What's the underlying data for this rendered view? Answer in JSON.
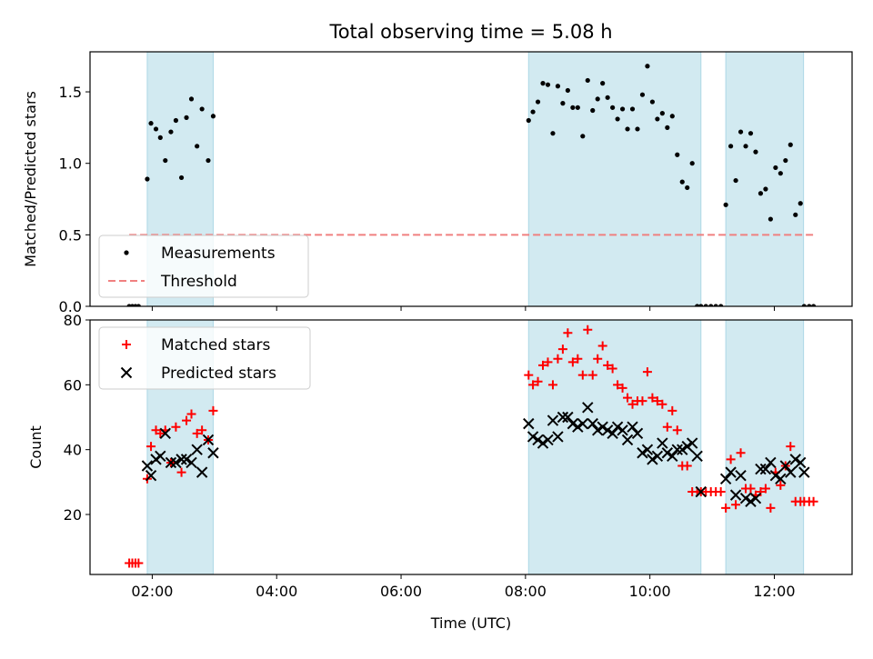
{
  "chart_data": {
    "type": "scatter",
    "title": "Total observing time = 5.08 h",
    "xlabel": "Time (UTC)",
    "x_tick_labels": [
      "02:00",
      "04:00",
      "06:00",
      "08:00",
      "10:00",
      "12:00"
    ],
    "x_tick_hours": [
      2,
      4,
      6,
      8,
      10,
      12
    ],
    "xlim_hours": [
      1.0,
      13.25
    ],
    "observing_windows_hours": [
      [
        1.92,
        2.98
      ],
      [
        8.05,
        10.82
      ],
      [
        11.22,
        12.47
      ]
    ],
    "window_color": "#add8e6",
    "panels": [
      {
        "id": "ratio",
        "ylabel": "Matched/Predicted stars",
        "ylim": [
          0,
          1.78
        ],
        "y_ticks": [
          0.0,
          0.5,
          1.0,
          1.5
        ],
        "y_tick_labels": [
          "0.0",
          "0.5",
          "1.0",
          "1.5"
        ],
        "legend_position": "lower-left",
        "series": [
          {
            "name": "Measurements",
            "marker": "dot",
            "color": "#000000",
            "x": [
              1.63,
              1.68,
              1.73,
              1.78,
              1.92,
              1.98,
              2.06,
              2.13,
              2.21,
              2.3,
              2.38,
              2.47,
              2.55,
              2.63,
              2.72,
              2.8,
              2.9,
              2.98,
              8.05,
              8.12,
              8.2,
              8.28,
              8.36,
              8.44,
              8.52,
              8.6,
              8.68,
              8.76,
              8.84,
              8.92,
              9.0,
              9.08,
              9.16,
              9.24,
              9.32,
              9.4,
              9.48,
              9.56,
              9.64,
              9.72,
              9.8,
              9.88,
              9.96,
              10.04,
              10.12,
              10.2,
              10.28,
              10.36,
              10.44,
              10.52,
              10.6,
              10.68,
              10.76,
              10.82,
              10.9,
              10.98,
              11.06,
              11.14,
              11.22,
              11.3,
              11.38,
              11.46,
              11.54,
              11.62,
              11.7,
              11.78,
              11.86,
              11.94,
              12.02,
              12.1,
              12.18,
              12.26,
              12.34,
              12.42,
              12.48,
              12.56,
              12.63
            ],
            "y": [
              0,
              0,
              0,
              0,
              0.89,
              1.28,
              1.24,
              1.18,
              1.02,
              1.22,
              1.3,
              0.9,
              1.32,
              1.45,
              1.12,
              1.38,
              1.02,
              1.33,
              1.3,
              1.36,
              1.43,
              1.56,
              1.55,
              1.21,
              1.54,
              1.42,
              1.51,
              1.39,
              1.39,
              1.19,
              1.58,
              1.37,
              1.45,
              1.56,
              1.46,
              1.39,
              1.31,
              1.38,
              1.24,
              1.38,
              1.24,
              1.48,
              1.68,
              1.43,
              1.31,
              1.35,
              1.25,
              1.33,
              1.06,
              0.87,
              0.83,
              1.0,
              0,
              0,
              0,
              0,
              0,
              0,
              0.71,
              1.12,
              0.88,
              1.22,
              1.12,
              1.21,
              1.08,
              0.79,
              0.82,
              0.61,
              0.97,
              0.93,
              1.02,
              1.13,
              0.64,
              0.72,
              0,
              0,
              0
            ]
          },
          {
            "name": "Threshold",
            "line_style": "dashed",
            "color": "#f08080",
            "x": [
              1.63,
              12.63
            ],
            "y": [
              0.5,
              0.5
            ]
          }
        ]
      },
      {
        "id": "counts",
        "ylabel": "Count",
        "ylim": [
          1.5,
          80
        ],
        "y_ticks": [
          20,
          40,
          60,
          80
        ],
        "y_tick_labels": [
          "20",
          "40",
          "60",
          "80"
        ],
        "legend_position": "upper-left",
        "series": [
          {
            "name": "Matched stars",
            "marker": "plus",
            "color": "#ff0000",
            "x": [
              1.63,
              1.68,
              1.73,
              1.78,
              1.92,
              1.98,
              2.06,
              2.13,
              2.21,
              2.3,
              2.38,
              2.47,
              2.55,
              2.63,
              2.72,
              2.8,
              2.9,
              2.98,
              8.05,
              8.12,
              8.2,
              8.28,
              8.36,
              8.44,
              8.52,
              8.6,
              8.68,
              8.76,
              8.84,
              8.92,
              9.0,
              9.08,
              9.16,
              9.24,
              9.32,
              9.4,
              9.48,
              9.56,
              9.64,
              9.72,
              9.8,
              9.88,
              9.96,
              10.04,
              10.12,
              10.2,
              10.28,
              10.36,
              10.44,
              10.52,
              10.6,
              10.68,
              10.76,
              10.82,
              10.9,
              10.98,
              11.06,
              11.14,
              11.22,
              11.3,
              11.38,
              11.46,
              11.54,
              11.62,
              11.7,
              11.78,
              11.86,
              11.94,
              12.02,
              12.1,
              12.18,
              12.26,
              12.34,
              12.42,
              12.48,
              12.56,
              12.63
            ],
            "y": [
              5,
              5,
              5,
              5,
              31,
              41,
              46,
              45,
              46,
              36,
              47,
              33,
              49,
              51,
              45,
              46,
              43,
              52,
              63,
              60,
              61,
              66,
              67,
              60,
              68,
              71,
              76,
              67,
              68,
              63,
              77,
              63,
              68,
              72,
              66,
              65,
              60,
              59,
              56,
              54,
              55,
              55,
              64,
              56,
              55,
              54,
              47,
              52,
              46,
              35,
              35,
              27,
              27,
              27,
              27,
              27,
              27,
              27,
              22,
              37,
              23,
              39,
              28,
              28,
              26,
              27,
              28,
              22,
              33,
              29,
              35,
              41,
              24,
              24,
              24,
              24,
              24
            ]
          },
          {
            "name": "Predicted stars",
            "marker": "x",
            "color": "#000000",
            "x": [
              1.92,
              1.98,
              2.06,
              2.13,
              2.21,
              2.3,
              2.38,
              2.47,
              2.55,
              2.63,
              2.72,
              2.8,
              2.9,
              2.98,
              8.05,
              8.12,
              8.2,
              8.28,
              8.36,
              8.44,
              8.52,
              8.6,
              8.68,
              8.76,
              8.84,
              8.92,
              9.0,
              9.08,
              9.16,
              9.24,
              9.32,
              9.4,
              9.48,
              9.56,
              9.64,
              9.72,
              9.8,
              9.88,
              9.96,
              10.04,
              10.12,
              10.2,
              10.28,
              10.36,
              10.44,
              10.52,
              10.6,
              10.68,
              10.76,
              10.82,
              11.22,
              11.3,
              11.38,
              11.46,
              11.54,
              11.62,
              11.7,
              11.78,
              11.86,
              11.94,
              12.02,
              12.1,
              12.18,
              12.26,
              12.34,
              12.42,
              12.48
            ],
            "y": [
              35,
              32,
              37,
              38,
              45,
              36,
              36,
              37,
              37,
              36,
              40,
              33,
              43,
              39,
              48,
              44,
              43,
              42,
              43,
              49,
              44,
              50,
              50,
              48,
              47,
              48,
              53,
              48,
              46,
              47,
              46,
              45,
              47,
              46,
              43,
              47,
              45,
              39,
              40,
              37,
              38,
              42,
              39,
              38,
              40,
              40,
              41,
              42,
              38,
              27,
              31,
              33,
              26,
              32,
              25,
              24,
              25,
              34,
              34,
              36,
              32,
              31,
              35,
              33,
              37,
              36,
              33
            ]
          }
        ]
      }
    ]
  }
}
